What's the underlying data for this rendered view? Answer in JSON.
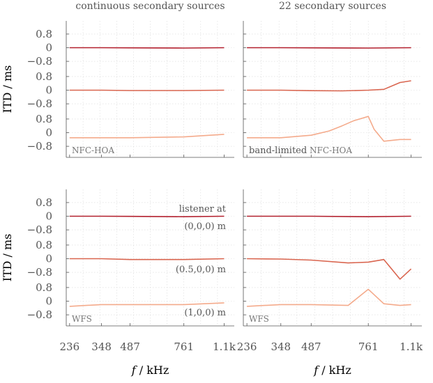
{
  "chart_data": {
    "type": "line",
    "x_ticks": [
      "236",
      "348",
      "487",
      "761",
      "1.1k"
    ],
    "y_ticks": [
      "0.8",
      "0",
      "−0.8"
    ],
    "xlabel_f": "f",
    "xlabel_unit": "/ kHz",
    "ylabel": "ITD / ms",
    "column_titles": [
      "continuous secondary sources",
      "22 secondary sources"
    ],
    "listener_label": "listener at",
    "listener_positions": [
      "(0,0,0) m",
      "(0.5,0,0) m",
      "(1,0,0) m"
    ],
    "colors": [
      "#b3202e",
      "#d9654f",
      "#f4aa8b"
    ],
    "panels": [
      {
        "method_prefix": "",
        "method": "NFC-HOA",
        "series": [
          {
            "x": [
              236,
              348,
              487,
              761,
              1100
            ],
            "values": [
              0.0,
              0.0,
              -0.01,
              -0.02,
              0.0
            ]
          },
          {
            "x": [
              236,
              348,
              487,
              761,
              1100
            ],
            "values": [
              0.0,
              0.0,
              -0.02,
              -0.02,
              0.0
            ]
          },
          {
            "x": [
              236,
              348,
              487,
              761,
              1100
            ],
            "values": [
              -0.3,
              -0.3,
              -0.3,
              -0.25,
              -0.1
            ]
          }
        ]
      },
      {
        "method_prefix": "band-limited",
        "method": "NFC-HOA",
        "series": [
          {
            "x": [
              236,
              348,
              487,
              761,
              1100
            ],
            "values": [
              0.0,
              0.0,
              -0.01,
              -0.02,
              0.0
            ]
          },
          {
            "x": [
              236,
              348,
              487,
              620,
              761,
              870,
              1000,
              1100
            ],
            "values": [
              0.0,
              0.0,
              -0.03,
              -0.04,
              0.0,
              0.05,
              0.45,
              0.55
            ]
          },
          {
            "x": [
              236,
              348,
              487,
              560,
              620,
              680,
              761,
              800,
              870,
              1000,
              1100
            ],
            "values": [
              -0.3,
              -0.3,
              -0.15,
              0.1,
              0.4,
              0.7,
              0.95,
              0.2,
              -0.5,
              -0.4,
              -0.4
            ]
          }
        ]
      },
      {
        "method_prefix": "",
        "method": "WFS",
        "series": [
          {
            "x": [
              236,
              348,
              487,
              761,
              1100
            ],
            "values": [
              0.0,
              0.0,
              -0.01,
              -0.03,
              0.0
            ]
          },
          {
            "x": [
              236,
              348,
              487,
              761,
              1100
            ],
            "values": [
              0.0,
              0.0,
              -0.05,
              -0.05,
              0.0
            ]
          },
          {
            "x": [
              236,
              348,
              487,
              761,
              1100
            ],
            "values": [
              -0.3,
              -0.2,
              -0.2,
              -0.2,
              -0.1
            ]
          }
        ]
      },
      {
        "method_prefix": "",
        "method": "WFS",
        "series": [
          {
            "x": [
              236,
              348,
              487,
              761,
              1100
            ],
            "values": [
              0.0,
              0.0,
              0.0,
              -0.03,
              0.0
            ]
          },
          {
            "x": [
              236,
              348,
              487,
              650,
              761,
              870,
              1000,
              1100
            ],
            "values": [
              0.0,
              -0.02,
              -0.08,
              -0.25,
              -0.2,
              -0.05,
              -1.2,
              -0.6
            ]
          },
          {
            "x": [
              236,
              348,
              487,
              650,
              761,
              870,
              1000,
              1100
            ],
            "values": [
              -0.3,
              -0.2,
              -0.2,
              -0.25,
              0.7,
              -0.15,
              -0.25,
              -0.2
            ]
          }
        ]
      }
    ]
  }
}
